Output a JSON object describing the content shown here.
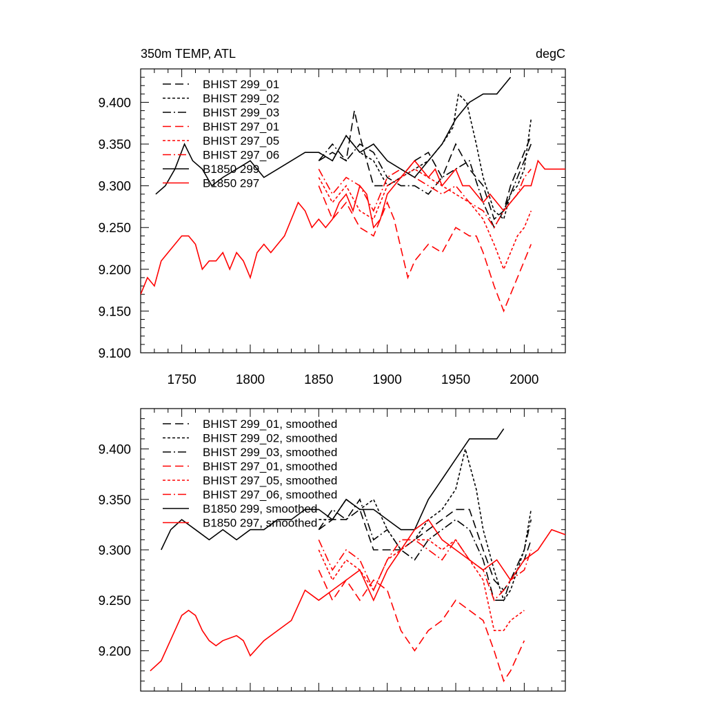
{
  "figure_title": "350m TEMP, ATL",
  "units": "degC",
  "colors": {
    "black": "#000000",
    "red": "#ff0000"
  },
  "chart_data": [
    {
      "type": "line",
      "title": "350m TEMP, ATL",
      "units": "degC",
      "xlim": [
        1720,
        2030
      ],
      "ylim": [
        9.1,
        9.44
      ],
      "xticks": [
        1750,
        1800,
        1850,
        1900,
        1950,
        2000
      ],
      "yticks": [
        9.1,
        9.15,
        9.2,
        9.25,
        9.3,
        9.35,
        9.4
      ],
      "ytick_labels": [
        "9.100",
        "9.150",
        "9.200",
        "9.250",
        "9.300",
        "9.350",
        "9.400"
      ],
      "xtick_labels": [
        "1750",
        "1800",
        "1850",
        "1900",
        "1950",
        "2000"
      ],
      "legend_position": "top-left",
      "series": [
        {
          "name": "BHIST 299_01",
          "color": "#000000",
          "dash": "long-dash",
          "x": [
            1850,
            1860,
            1870,
            1876,
            1880,
            1890,
            1900,
            1910,
            1920,
            1930,
            1940,
            1950,
            1960,
            1970,
            1978,
            1985,
            1990,
            1995,
            2000,
            2005
          ],
          "y": [
            9.33,
            9.34,
            9.33,
            9.39,
            9.36,
            9.3,
            9.3,
            9.31,
            9.33,
            9.34,
            9.31,
            9.35,
            9.32,
            9.3,
            9.26,
            9.27,
            9.3,
            9.32,
            9.34,
            9.36
          ]
        },
        {
          "name": "BHIST 299_02",
          "color": "#000000",
          "dash": "short-dash",
          "x": [
            1850,
            1860,
            1870,
            1880,
            1890,
            1900,
            1910,
            1920,
            1930,
            1940,
            1948,
            1952,
            1958,
            1965,
            1970,
            1978,
            1985,
            1990,
            1995,
            2000,
            2005
          ],
          "y": [
            9.34,
            9.33,
            9.36,
            9.34,
            9.33,
            9.3,
            9.31,
            9.32,
            9.33,
            9.35,
            9.37,
            9.41,
            9.4,
            9.35,
            9.31,
            9.27,
            9.26,
            9.29,
            9.3,
            9.32,
            9.38
          ]
        },
        {
          "name": "BHIST 299_03",
          "color": "#000000",
          "dash": "dash-dot",
          "x": [
            1850,
            1860,
            1870,
            1880,
            1890,
            1900,
            1910,
            1920,
            1930,
            1940,
            1950,
            1960,
            1970,
            1978,
            1985,
            1990,
            1995,
            2000,
            2005
          ],
          "y": [
            9.33,
            9.35,
            9.33,
            9.35,
            9.34,
            9.31,
            9.3,
            9.3,
            9.29,
            9.31,
            9.32,
            9.33,
            9.28,
            9.25,
            9.27,
            9.29,
            9.31,
            9.33,
            9.35
          ]
        },
        {
          "name": "BHIST 297_01",
          "color": "#ff0000",
          "dash": "long-dash",
          "x": [
            1850,
            1860,
            1870,
            1880,
            1890,
            1900,
            1905,
            1915,
            1920,
            1930,
            1940,
            1950,
            1960,
            1965,
            1970,
            1978,
            1985,
            1990,
            1995,
            2000,
            2005
          ],
          "y": [
            9.3,
            9.26,
            9.28,
            9.25,
            9.24,
            9.28,
            9.26,
            9.19,
            9.21,
            9.23,
            9.22,
            9.25,
            9.24,
            9.24,
            9.22,
            9.18,
            9.15,
            9.17,
            9.19,
            9.21,
            9.23
          ]
        },
        {
          "name": "BHIST 297_05",
          "color": "#ff0000",
          "dash": "short-dash",
          "x": [
            1850,
            1860,
            1870,
            1880,
            1890,
            1900,
            1910,
            1920,
            1930,
            1940,
            1950,
            1960,
            1970,
            1978,
            1985,
            1990,
            1995,
            2000,
            2005
          ],
          "y": [
            9.31,
            9.28,
            9.3,
            9.27,
            9.26,
            9.3,
            9.31,
            9.32,
            9.31,
            9.3,
            9.29,
            9.28,
            9.26,
            9.23,
            9.2,
            9.22,
            9.24,
            9.25,
            9.27
          ]
        },
        {
          "name": "BHIST 297_06",
          "color": "#ff0000",
          "dash": "dash-dot",
          "x": [
            1850,
            1860,
            1870,
            1880,
            1890,
            1900,
            1910,
            1920,
            1930,
            1940,
            1950,
            1960,
            1970,
            1978,
            1985,
            1990,
            1995,
            2000,
            2005
          ],
          "y": [
            9.32,
            9.29,
            9.31,
            9.3,
            9.27,
            9.31,
            9.32,
            9.31,
            9.3,
            9.29,
            9.3,
            9.28,
            9.27,
            9.25,
            9.27,
            9.28,
            9.29,
            9.31,
            9.32
          ]
        },
        {
          "name": "B1850 299",
          "color": "#000000",
          "dash": "solid",
          "x": [
            1731,
            1738,
            1745,
            1752,
            1758,
            1765,
            1772,
            1780,
            1790,
            1800,
            1810,
            1820,
            1830,
            1840,
            1850,
            1860,
            1870,
            1880,
            1890,
            1900,
            1910,
            1920,
            1930,
            1940,
            1950,
            1960,
            1970,
            1980,
            1985,
            1990
          ],
          "y": [
            9.29,
            9.3,
            9.32,
            9.35,
            9.33,
            9.32,
            9.3,
            9.31,
            9.32,
            9.33,
            9.31,
            9.32,
            9.33,
            9.34,
            9.34,
            9.33,
            9.36,
            9.34,
            9.35,
            9.33,
            9.32,
            9.31,
            9.33,
            9.35,
            9.38,
            9.4,
            9.41,
            9.41,
            9.42,
            9.43
          ]
        },
        {
          "name": "B1850 297",
          "color": "#ff0000",
          "dash": "solid",
          "x": [
            1720,
            1725,
            1730,
            1735,
            1740,
            1745,
            1750,
            1755,
            1760,
            1765,
            1770,
            1775,
            1780,
            1785,
            1790,
            1795,
            1800,
            1805,
            1810,
            1815,
            1820,
            1825,
            1830,
            1835,
            1840,
            1845,
            1850,
            1855,
            1860,
            1865,
            1870,
            1875,
            1880,
            1885,
            1890,
            1895,
            1900,
            1905,
            1910,
            1915,
            1920,
            1925,
            1930,
            1935,
            1940,
            1945,
            1950,
            1955,
            1960,
            1965,
            1970,
            1975,
            1980,
            1985,
            1990,
            1995,
            2000,
            2005,
            2010,
            2015,
            2020,
            2025,
            2030
          ],
          "y": [
            9.17,
            9.19,
            9.18,
            9.21,
            9.22,
            9.23,
            9.24,
            9.24,
            9.23,
            9.2,
            9.21,
            9.21,
            9.22,
            9.2,
            9.22,
            9.21,
            9.19,
            9.22,
            9.23,
            9.22,
            9.23,
            9.24,
            9.26,
            9.28,
            9.27,
            9.25,
            9.26,
            9.25,
            9.26,
            9.28,
            9.29,
            9.27,
            9.3,
            9.29,
            9.25,
            9.26,
            9.29,
            9.3,
            9.31,
            9.32,
            9.33,
            9.32,
            9.31,
            9.32,
            9.3,
            9.31,
            9.32,
            9.3,
            9.3,
            9.29,
            9.28,
            9.29,
            9.28,
            9.27,
            9.28,
            9.29,
            9.3,
            9.3,
            9.33,
            9.32,
            9.32,
            9.32,
            9.32
          ]
        }
      ]
    },
    {
      "type": "line",
      "title": "",
      "xlim": [
        1720,
        2030
      ],
      "ylim": [
        9.16,
        9.44
      ],
      "xticks": [
        1750,
        1800,
        1850,
        1900,
        1950,
        2000
      ],
      "yticks": [
        9.2,
        9.25,
        9.3,
        9.35,
        9.4
      ],
      "ytick_labels": [
        "9.200",
        "9.250",
        "9.300",
        "9.350",
        "9.400"
      ],
      "legend_position": "top-left",
      "series": [
        {
          "name": "BHIST 299_01, smoothed",
          "color": "#000000",
          "dash": "long-dash",
          "x": [
            1850,
            1860,
            1870,
            1880,
            1890,
            1900,
            1910,
            1920,
            1930,
            1940,
            1950,
            1960,
            1970,
            1978,
            1985,
            1990,
            2000,
            2005
          ],
          "y": [
            9.32,
            9.33,
            9.33,
            9.34,
            9.3,
            9.3,
            9.3,
            9.31,
            9.32,
            9.33,
            9.34,
            9.34,
            9.3,
            9.27,
            9.26,
            9.27,
            9.29,
            9.31
          ]
        },
        {
          "name": "BHIST 299_02, smoothed",
          "color": "#000000",
          "dash": "short-dash",
          "x": [
            1850,
            1860,
            1870,
            1880,
            1890,
            1900,
            1910,
            1920,
            1930,
            1940,
            1950,
            1957,
            1965,
            1970,
            1978,
            1985,
            1990,
            2000,
            2005
          ],
          "y": [
            9.33,
            9.33,
            9.35,
            9.34,
            9.35,
            9.32,
            9.3,
            9.31,
            9.33,
            9.34,
            9.36,
            9.4,
            9.36,
            9.32,
            9.28,
            9.25,
            9.26,
            9.3,
            9.34
          ]
        },
        {
          "name": "BHIST 299_03, smoothed",
          "color": "#000000",
          "dash": "dash-dot",
          "x": [
            1850,
            1860,
            1870,
            1880,
            1890,
            1900,
            1910,
            1920,
            1930,
            1940,
            1950,
            1960,
            1970,
            1978,
            1985,
            1990,
            2000,
            2005
          ],
          "y": [
            9.32,
            9.34,
            9.33,
            9.35,
            9.31,
            9.32,
            9.3,
            9.29,
            9.31,
            9.32,
            9.33,
            9.32,
            9.29,
            9.25,
            9.25,
            9.27,
            9.3,
            9.33
          ]
        },
        {
          "name": "BHIST 297_01, smoothed",
          "color": "#ff0000",
          "dash": "long-dash",
          "x": [
            1850,
            1860,
            1870,
            1880,
            1890,
            1900,
            1910,
            1920,
            1930,
            1940,
            1950,
            1960,
            1970,
            1978,
            1985,
            1990,
            2000
          ],
          "y": [
            9.28,
            9.25,
            9.27,
            9.25,
            9.27,
            9.26,
            9.22,
            9.2,
            9.22,
            9.23,
            9.25,
            9.24,
            9.23,
            9.2,
            9.17,
            9.18,
            9.21
          ]
        },
        {
          "name": "BHIST 297_05, smoothed",
          "color": "#ff0000",
          "dash": "short-dash",
          "x": [
            1850,
            1860,
            1870,
            1880,
            1890,
            1900,
            1910,
            1920,
            1930,
            1940,
            1950,
            1960,
            1970,
            1978,
            1985,
            1990,
            2000
          ],
          "y": [
            9.3,
            9.27,
            9.29,
            9.28,
            9.26,
            9.29,
            9.3,
            9.31,
            9.31,
            9.3,
            9.31,
            9.29,
            9.27,
            9.22,
            9.22,
            9.23,
            9.24
          ]
        },
        {
          "name": "BHIST 297_06, smoothed",
          "color": "#ff0000",
          "dash": "dash-dot",
          "x": [
            1850,
            1860,
            1870,
            1880,
            1890,
            1900,
            1910,
            1920,
            1930,
            1940,
            1950,
            1960,
            1970,
            1978,
            1985,
            1990,
            2000,
            2005
          ],
          "y": [
            9.31,
            9.28,
            9.3,
            9.29,
            9.26,
            9.29,
            9.31,
            9.31,
            9.3,
            9.29,
            9.31,
            9.29,
            9.28,
            9.25,
            9.26,
            9.27,
            9.28,
            9.3
          ]
        },
        {
          "name": "B1850 299, smoothed",
          "color": "#000000",
          "dash": "solid",
          "x": [
            1735,
            1742,
            1750,
            1760,
            1770,
            1780,
            1790,
            1800,
            1810,
            1820,
            1830,
            1840,
            1850,
            1860,
            1870,
            1880,
            1890,
            1900,
            1910,
            1920,
            1930,
            1940,
            1950,
            1960,
            1970,
            1980,
            1985
          ],
          "y": [
            9.3,
            9.32,
            9.33,
            9.32,
            9.31,
            9.32,
            9.31,
            9.32,
            9.32,
            9.33,
            9.33,
            9.34,
            9.34,
            9.33,
            9.35,
            9.34,
            9.34,
            9.33,
            9.32,
            9.32,
            9.35,
            9.37,
            9.39,
            9.41,
            9.41,
            9.41,
            9.42
          ]
        },
        {
          "name": "B1850 297, smoothed",
          "color": "#ff0000",
          "dash": "solid",
          "x": [
            1727,
            1735,
            1745,
            1750,
            1755,
            1760,
            1765,
            1770,
            1775,
            1780,
            1790,
            1795,
            1800,
            1810,
            1820,
            1830,
            1840,
            1850,
            1860,
            1870,
            1880,
            1890,
            1900,
            1910,
            1920,
            1930,
            1940,
            1950,
            1960,
            1970,
            1980,
            1990,
            2000,
            2010,
            2020,
            2030
          ],
          "y": [
            9.18,
            9.19,
            9.22,
            9.235,
            9.24,
            9.235,
            9.22,
            9.21,
            9.205,
            9.21,
            9.215,
            9.21,
            9.195,
            9.21,
            9.22,
            9.23,
            9.26,
            9.25,
            9.26,
            9.27,
            9.28,
            9.25,
            9.28,
            9.3,
            9.32,
            9.33,
            9.31,
            9.3,
            9.29,
            9.28,
            9.29,
            9.27,
            9.29,
            9.3,
            9.32,
            9.315
          ]
        }
      ]
    }
  ]
}
